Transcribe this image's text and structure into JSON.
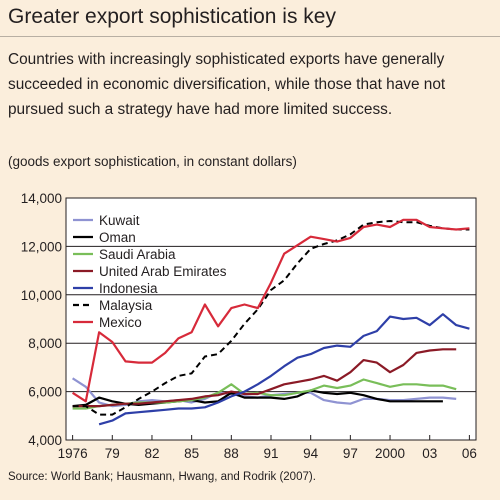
{
  "header": {
    "title": "Greater export sophistication is key",
    "subtitle": "Countries with increasingly sophisticated exports have generally succeeded in economic diversification, while those that have not pursued such a strategy have had more limited success.",
    "unit_note": "(goods export sophistication, in constant dollars)"
  },
  "source": "Source: World Bank; Hausmann, Hwang, and Rodrik (2007).",
  "chart_data": {
    "type": "line",
    "title": "",
    "xlabel": "",
    "ylabel": "",
    "xlim": [
      1975.5,
      2006.5
    ],
    "ylim": [
      4000,
      14000
    ],
    "grid": "horizontal",
    "legend_position": "top-left",
    "x_tick_values": [
      1976,
      1979,
      1982,
      1985,
      1988,
      1991,
      1994,
      1997,
      2000,
      2003,
      2006
    ],
    "x_tick_labels": [
      "1976",
      "79",
      "82",
      "85",
      "88",
      "91",
      "94",
      "97",
      "2000",
      "03",
      "06"
    ],
    "y_ticks": [
      4000,
      6000,
      8000,
      10000,
      12000,
      14000
    ],
    "y_tick_labels": [
      "4,000",
      "6,000",
      "8,000",
      "10,000",
      "12,000",
      "14,000"
    ],
    "series": [
      {
        "name": "Kuwait",
        "color": "#8F93D2",
        "dash": false,
        "x": [
          1976,
          1977,
          1978,
          1979,
          1980,
          1981,
          1982,
          1983,
          1984,
          1985,
          1986,
          1987,
          1988,
          1989,
          1990,
          1991,
          1992,
          1993,
          1994,
          1995,
          1996,
          1997,
          1998,
          1999,
          2000,
          2001,
          2002,
          2003,
          2004,
          2005
        ],
        "values": [
          6550,
          6200,
          5550,
          5400,
          5450,
          5600,
          5650,
          5600,
          5650,
          5550,
          5700,
          5950,
          5900,
          5800,
          5750,
          5850,
          5900,
          5950,
          5950,
          5650,
          5550,
          5500,
          5700,
          5700,
          5650,
          5650,
          5700,
          5750,
          5750,
          5700
        ]
      },
      {
        "name": "Oman",
        "color": "#000000",
        "dash": false,
        "x": [
          1976,
          1977,
          1978,
          1979,
          1980,
          1981,
          1982,
          1983,
          1984,
          1985,
          1986,
          1987,
          1988,
          1989,
          1990,
          1991,
          1992,
          1993,
          1994,
          1995,
          1996,
          1997,
          1998,
          1999,
          2000,
          2001,
          2002,
          2003,
          2004
        ],
        "values": [
          5400,
          5450,
          5750,
          5600,
          5500,
          5450,
          5500,
          5550,
          5600,
          5650,
          5550,
          5600,
          5950,
          5750,
          5750,
          5750,
          5700,
          5800,
          6050,
          5950,
          5900,
          5950,
          5850,
          5700,
          5600,
          5600,
          5600,
          5600,
          5600
        ]
      },
      {
        "name": "Saudi Arabia",
        "color": "#79BE59",
        "dash": false,
        "x": [
          1976,
          1977,
          1978,
          1979,
          1980,
          1981,
          1982,
          1983,
          1984,
          1985,
          1986,
          1987,
          1988,
          1989,
          1990,
          1991,
          1992,
          1993,
          1994,
          1995,
          1996,
          1997,
          1998,
          1999,
          2000,
          2001,
          2002,
          2003,
          2004,
          2005
        ],
        "values": [
          5300,
          5300,
          5400,
          5450,
          5500,
          5550,
          5550,
          5550,
          5600,
          5650,
          5750,
          5950,
          6300,
          5900,
          5950,
          5850,
          5850,
          5950,
          6050,
          6250,
          6150,
          6250,
          6500,
          6350,
          6200,
          6300,
          6300,
          6250,
          6250,
          6100
        ]
      },
      {
        "name": "United Arab Emirates",
        "color": "#8B1A26",
        "dash": false,
        "x": [
          1976,
          1977,
          1978,
          1979,
          1980,
          1981,
          1982,
          1983,
          1984,
          1985,
          1986,
          1987,
          1988,
          1989,
          1990,
          1991,
          1992,
          1993,
          1994,
          1995,
          1996,
          1997,
          1998,
          1999,
          2000,
          2001,
          2002,
          2003,
          2004,
          2005
        ],
        "values": [
          5400,
          5400,
          5400,
          5450,
          5500,
          5500,
          5550,
          5600,
          5650,
          5700,
          5800,
          5850,
          6000,
          5900,
          5900,
          6100,
          6300,
          6400,
          6500,
          6650,
          6450,
          6800,
          7300,
          7200,
          6800,
          7100,
          7600,
          7700,
          7750,
          7750
        ]
      },
      {
        "name": "Indonesia",
        "color": "#2E3FA8",
        "dash": false,
        "x": [
          1978,
          1979,
          1980,
          1981,
          1982,
          1983,
          1984,
          1985,
          1986,
          1987,
          1988,
          1989,
          1990,
          1991,
          1992,
          1993,
          1994,
          1995,
          1996,
          1997,
          1998,
          1999,
          2000,
          2001,
          2002,
          2003,
          2004,
          2005,
          2006
        ],
        "values": [
          4650,
          4800,
          5100,
          5150,
          5200,
          5250,
          5300,
          5300,
          5350,
          5550,
          5800,
          6000,
          6300,
          6650,
          7050,
          7400,
          7550,
          7800,
          7900,
          7850,
          8300,
          8500,
          9100,
          9000,
          9050,
          8750,
          9200,
          8750,
          8600
        ]
      },
      {
        "name": "Malaysia",
        "color": "#000000",
        "dash": true,
        "x": [
          1976,
          1977,
          1978,
          1979,
          1980,
          1981,
          1982,
          1983,
          1984,
          1985,
          1986,
          1987,
          1988,
          1989,
          1990,
          1991,
          1992,
          1993,
          1994,
          1995,
          1996,
          1997,
          1998,
          1999,
          2000,
          2001,
          2002,
          2003,
          2004,
          2005,
          2006
        ],
        "values": [
          5400,
          5400,
          5050,
          5050,
          5350,
          5700,
          6000,
          6350,
          6650,
          6750,
          7450,
          7550,
          8100,
          8800,
          9400,
          10200,
          10600,
          11300,
          11900,
          12100,
          12250,
          12500,
          12900,
          13000,
          13050,
          13000,
          13000,
          12850,
          12750,
          12700,
          12700
        ]
      },
      {
        "name": "Mexico",
        "color": "#D72A3A",
        "dash": false,
        "x": [
          1976,
          1977,
          1978,
          1979,
          1980,
          1981,
          1982,
          1983,
          1984,
          1985,
          1986,
          1987,
          1988,
          1989,
          1990,
          1991,
          1992,
          1993,
          1994,
          1995,
          1996,
          1997,
          1998,
          1999,
          2000,
          2001,
          2002,
          2003,
          2004,
          2005,
          2006
        ],
        "values": [
          5950,
          5600,
          8450,
          8050,
          7250,
          7200,
          7200,
          7600,
          8200,
          8450,
          9600,
          8700,
          9450,
          9600,
          9450,
          10500,
          11700,
          12050,
          12400,
          12300,
          12200,
          12350,
          12800,
          12900,
          12800,
          13100,
          13100,
          12800,
          12750,
          12700,
          12750
        ]
      }
    ]
  }
}
